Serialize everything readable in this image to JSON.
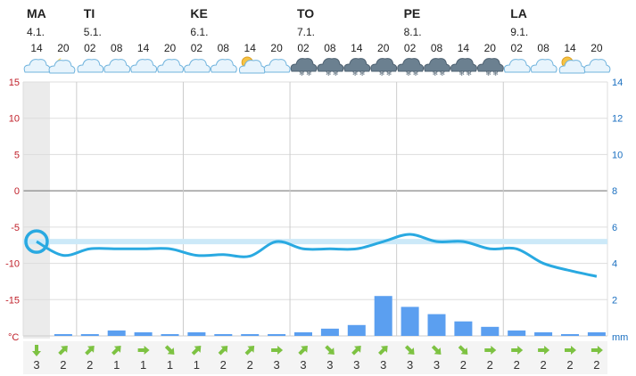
{
  "header": {
    "days": [
      {
        "day": "MA",
        "date": "4.1."
      },
      {
        "day": "TI",
        "date": "5.1."
      },
      {
        "day": "KE",
        "date": "6.1."
      },
      {
        "day": "TO",
        "date": "7.1."
      },
      {
        "day": "PE",
        "date": "8.1."
      },
      {
        "day": "LA",
        "date": "9.1."
      }
    ]
  },
  "chart_data": {
    "type": "line",
    "hours": [
      "14",
      "20",
      "02",
      "08",
      "14",
      "20",
      "02",
      "08",
      "14",
      "20",
      "02",
      "08",
      "14",
      "20",
      "02",
      "08",
      "14",
      "20",
      "02",
      "08",
      "14",
      "20"
    ],
    "icons": [
      "cloud",
      "moon-cloud",
      "cloud",
      "cloud",
      "cloud",
      "cloud",
      "cloud",
      "cloud",
      "sun-cloud",
      "cloud",
      "cloud-snow",
      "cloud-snow",
      "cloud-snow",
      "cloud-snow",
      "cloud-snow",
      "cloud-snow",
      "cloud-snow",
      "cloud-snow",
      "cloud",
      "cloud",
      "sun-cloud",
      "cloud"
    ],
    "temperature_unit": "°C",
    "precip_unit": "mm",
    "left_ticks": [
      "15",
      "10",
      "5",
      "0",
      "-5",
      "-10",
      "-15"
    ],
    "right_ticks": [
      "14",
      "12",
      "10",
      "8",
      "6",
      "4",
      "2"
    ],
    "left_ylim": [
      -20,
      15
    ],
    "right_ylim": [
      0,
      14
    ],
    "temperature": [
      -7.0,
      -8.9,
      -8.0,
      -8.0,
      -8.0,
      -8.0,
      -8.9,
      -8.8,
      -9.0,
      -7.0,
      -8.0,
      -8.0,
      -8.0,
      -7.0,
      -6.0,
      -7.0,
      -7.0,
      -8.0,
      -8.0,
      -10.0,
      -11.0,
      -11.8
    ],
    "temperature_marker_value": -7.0,
    "threshold_line": -7.0,
    "precipitation": [
      0.0,
      0.1,
      0.1,
      0.3,
      0.2,
      0.1,
      0.2,
      0.1,
      0.1,
      0.1,
      0.2,
      0.4,
      0.6,
      2.2,
      1.6,
      1.2,
      0.8,
      0.5,
      0.3,
      0.2,
      0.1,
      0.2
    ],
    "wind_speed": [
      "3",
      "2",
      "2",
      "1",
      "1",
      "1",
      "1",
      "2",
      "2",
      "3",
      "3",
      "3",
      "3",
      "3",
      "3",
      "3",
      "2",
      "2",
      "2",
      "2",
      "2",
      "2"
    ],
    "wind_direction_deg": [
      0,
      225,
      225,
      225,
      270,
      315,
      225,
      225,
      225,
      270,
      225,
      315,
      225,
      225,
      315,
      315,
      315,
      270,
      270,
      270,
      270,
      270
    ],
    "colors": {
      "temperature_line": "#29a9e1",
      "threshold_band": "#cce9f8",
      "precip_bar": "#5b9ff0",
      "wind_arrow": "#7dc242",
      "left_axis_text": "#c0202a",
      "right_axis_text": "#1a6fc0",
      "past_shade": "#ebebeb"
    }
  }
}
